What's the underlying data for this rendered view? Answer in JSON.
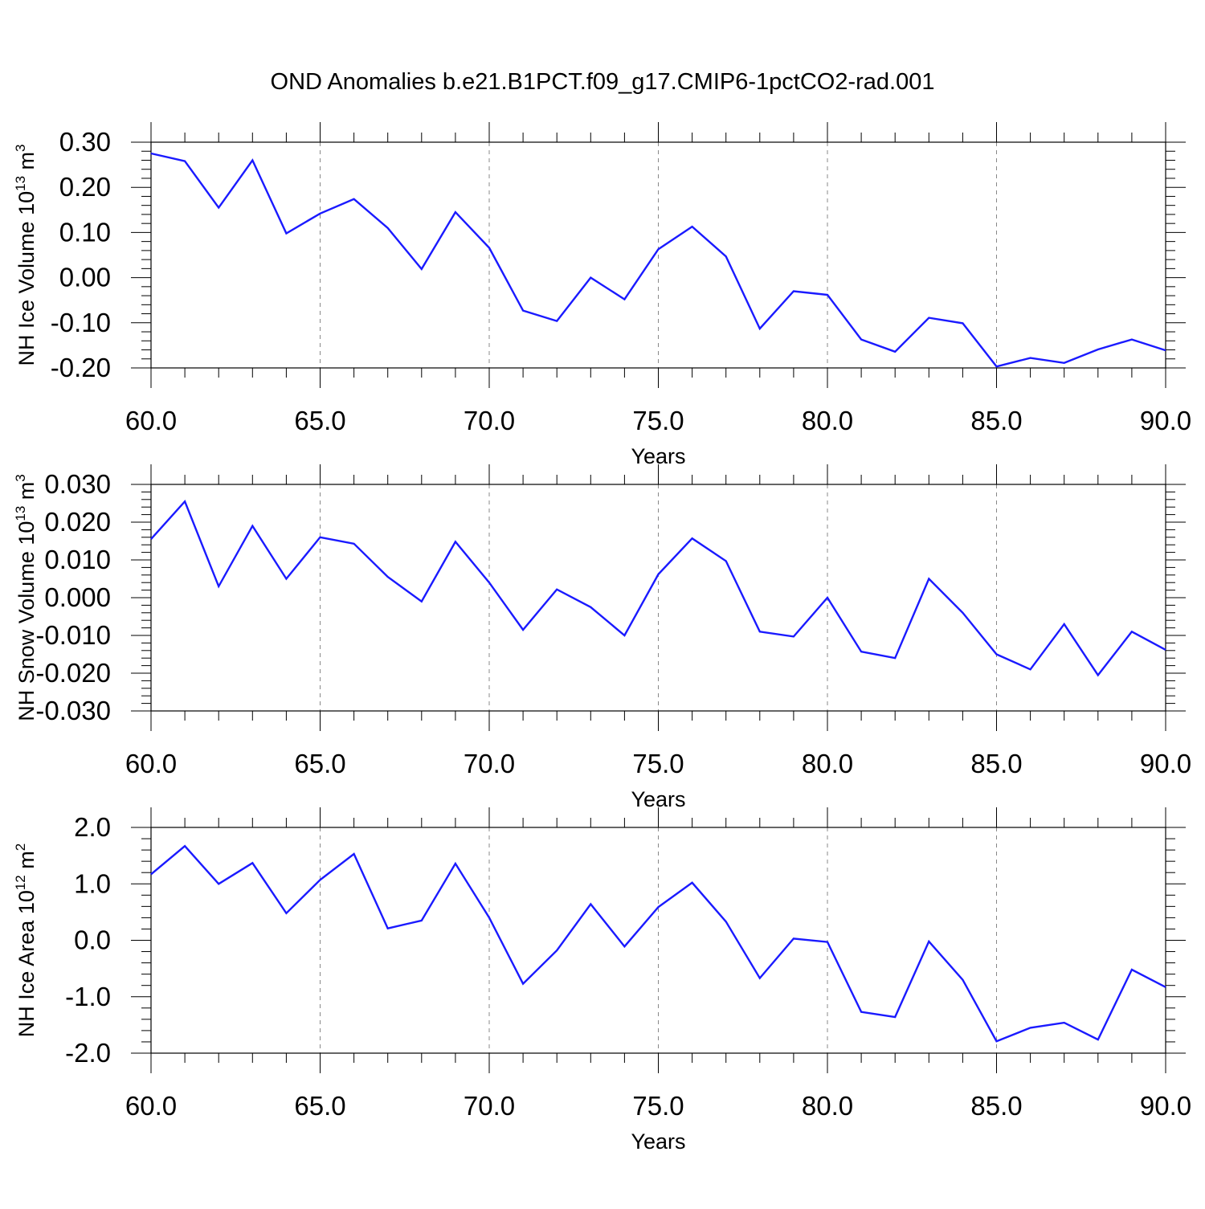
{
  "title": "OND Anomalies b.e21.B1PCT.f09_g17.CMIP6-1pctCO2-rad.001",
  "line_color": "#1a1aff",
  "chart_data": [
    {
      "type": "line",
      "xlabel": "Years",
      "ylabel": "NH Ice Volume 10",
      "ylabel_exp": "13",
      "ylabel_unit": " m",
      "ylabel_unit_exp": "3",
      "xlim": [
        60,
        90
      ],
      "ylim": [
        -0.2,
        0.3
      ],
      "xticks": [
        "60.0",
        "65.0",
        "70.0",
        "75.0",
        "80.0",
        "85.0",
        "90.0"
      ],
      "yticks": [
        "-0.20",
        "-0.10",
        "0.00",
        "0.10",
        "0.20",
        "0.30"
      ],
      "grid": "vertical dashed at major x ticks",
      "x": [
        60,
        61,
        62,
        63,
        64,
        65,
        66,
        67,
        68,
        69,
        70,
        71,
        72,
        73,
        74,
        75,
        76,
        77,
        78,
        79,
        80,
        81,
        82,
        83,
        84,
        85,
        86,
        87,
        88,
        89,
        90
      ],
      "series": [
        {
          "values": [
            0.275,
            0.258,
            0.155,
            0.26,
            0.098,
            0.142,
            0.174,
            0.11,
            0.019,
            0.145,
            0.066,
            -0.073,
            -0.096,
            0.0,
            -0.048,
            0.063,
            0.113,
            0.047,
            -0.113,
            -0.03,
            -0.038,
            -0.137,
            -0.164,
            -0.089,
            -0.101,
            -0.197,
            -0.178,
            -0.189,
            -0.159,
            -0.137,
            -0.161
          ]
        }
      ]
    },
    {
      "type": "line",
      "xlabel": "Years",
      "ylabel": "NH Snow Volume 10",
      "ylabel_exp": "13",
      "ylabel_unit": " m",
      "ylabel_unit_exp": "3",
      "xlim": [
        60,
        90
      ],
      "ylim": [
        -0.03,
        0.03
      ],
      "xticks": [
        "60.0",
        "65.0",
        "70.0",
        "75.0",
        "80.0",
        "85.0",
        "90.0"
      ],
      "yticks": [
        "-0.030",
        "-0.020",
        "-0.010",
        "0.000",
        "0.010",
        "0.020",
        "0.030"
      ],
      "grid": "vertical dashed at major x ticks",
      "x": [
        60,
        61,
        62,
        63,
        64,
        65,
        66,
        67,
        68,
        69,
        70,
        71,
        72,
        73,
        74,
        75,
        76,
        77,
        78,
        79,
        80,
        81,
        82,
        83,
        84,
        85,
        86,
        87,
        88,
        89,
        90
      ],
      "series": [
        {
          "values": [
            0.0155,
            0.0255,
            0.003,
            0.019,
            0.005,
            0.016,
            0.0143,
            0.0055,
            -0.001,
            0.0148,
            0.004,
            -0.0085,
            0.0022,
            -0.0025,
            -0.01,
            0.0062,
            0.0157,
            0.0097,
            -0.009,
            -0.0103,
            0.0,
            -0.0143,
            -0.016,
            0.005,
            -0.004,
            -0.015,
            -0.019,
            -0.007,
            -0.0205,
            -0.009,
            -0.0138
          ]
        }
      ]
    },
    {
      "type": "line",
      "xlabel": "Years",
      "ylabel": "NH Ice Area 10",
      "ylabel_exp": "12",
      "ylabel_unit": " m",
      "ylabel_unit_exp": "2",
      "xlim": [
        60,
        90
      ],
      "ylim": [
        -2.0,
        2.0
      ],
      "xticks": [
        "60.0",
        "65.0",
        "70.0",
        "75.0",
        "80.0",
        "85.0",
        "90.0"
      ],
      "yticks": [
        "-2.0",
        "-1.0",
        "0.0",
        "1.0",
        "2.0"
      ],
      "grid": "vertical dashed at major x ticks",
      "x": [
        60,
        61,
        62,
        63,
        64,
        65,
        66,
        67,
        68,
        69,
        70,
        71,
        72,
        73,
        74,
        75,
        76,
        77,
        78,
        79,
        80,
        81,
        82,
        83,
        84,
        85,
        86,
        87,
        88,
        89,
        90
      ],
      "series": [
        {
          "values": [
            1.17,
            1.67,
            1.0,
            1.37,
            0.48,
            1.07,
            1.53,
            0.21,
            0.35,
            1.36,
            0.4,
            -0.77,
            -0.18,
            0.64,
            -0.11,
            0.59,
            1.02,
            0.33,
            -0.67,
            0.03,
            -0.03,
            -1.27,
            -1.36,
            -0.02,
            -0.7,
            -1.79,
            -1.55,
            -1.46,
            -1.76,
            -0.52,
            -0.83
          ]
        }
      ]
    }
  ]
}
